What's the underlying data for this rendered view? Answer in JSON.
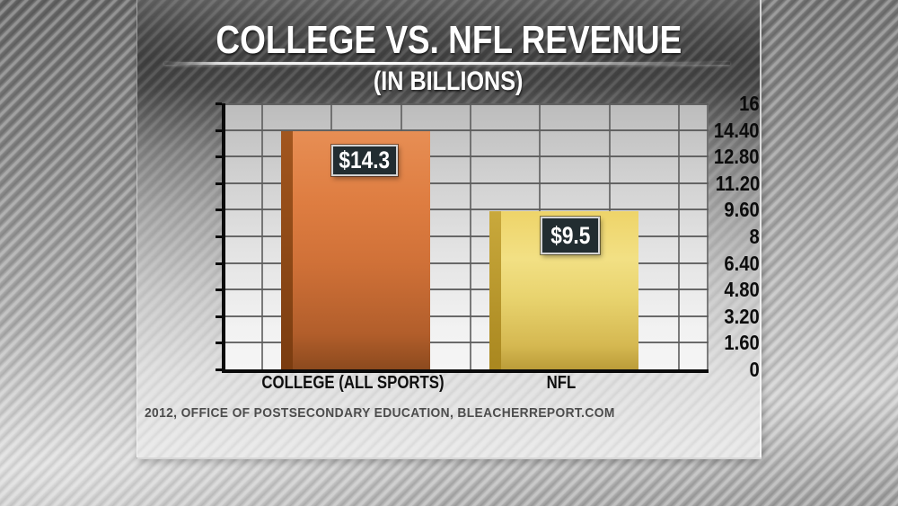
{
  "header": {
    "title": "COLLEGE VS. NFL REVENUE",
    "subtitle": "(IN BILLIONS)"
  },
  "source_text": "2012, OFFICE OF POSTSECONDARY EDUCATION, BLEACHERREPORT.COM",
  "chart_data": {
    "type": "bar",
    "title": "COLLEGE VS. NFL REVENUE",
    "subtitle": "(IN BILLIONS)",
    "categories": [
      "COLLEGE (ALL SPORTS)",
      "NFL"
    ],
    "values": [
      14.3,
      9.5
    ],
    "value_labels": [
      "$14.3",
      "$9.5"
    ],
    "ylim": [
      0,
      16
    ],
    "ytick_step": 1.6,
    "ytick_labels": [
      "16",
      "14.40",
      "12.80",
      "11.20",
      "9.60",
      "8",
      "6.40",
      "4.80",
      "3.20",
      "1.60",
      "0"
    ],
    "grid": true,
    "legend": "none",
    "bar_styles": [
      {
        "name": "college",
        "face_top": "#e78e54",
        "face_upper": "#de7d41",
        "face_mid": "#d07138",
        "face_low": "#b25e2b",
        "face_bottom": "#8c4a1e",
        "side_top": "#a2561e",
        "side_bottom": "#7a3c10"
      },
      {
        "name": "nfl",
        "face_top": "#eed469",
        "face_upper": "#f2e084",
        "face_mid": "#e8d36e",
        "face_low": "#d5b851",
        "face_bottom": "#bb9c39",
        "side_top": "#c9a93c",
        "side_bottom": "#a9871f"
      }
    ],
    "colors": {
      "value_box_bg": "#222d31",
      "value_box_border": "#d4d4d4",
      "axis": "#0a0a0a",
      "gridline": "#515151",
      "title_text": "#ffffff",
      "tick_text": "#0c0c0c",
      "source_text": "#4c4c4c"
    }
  }
}
